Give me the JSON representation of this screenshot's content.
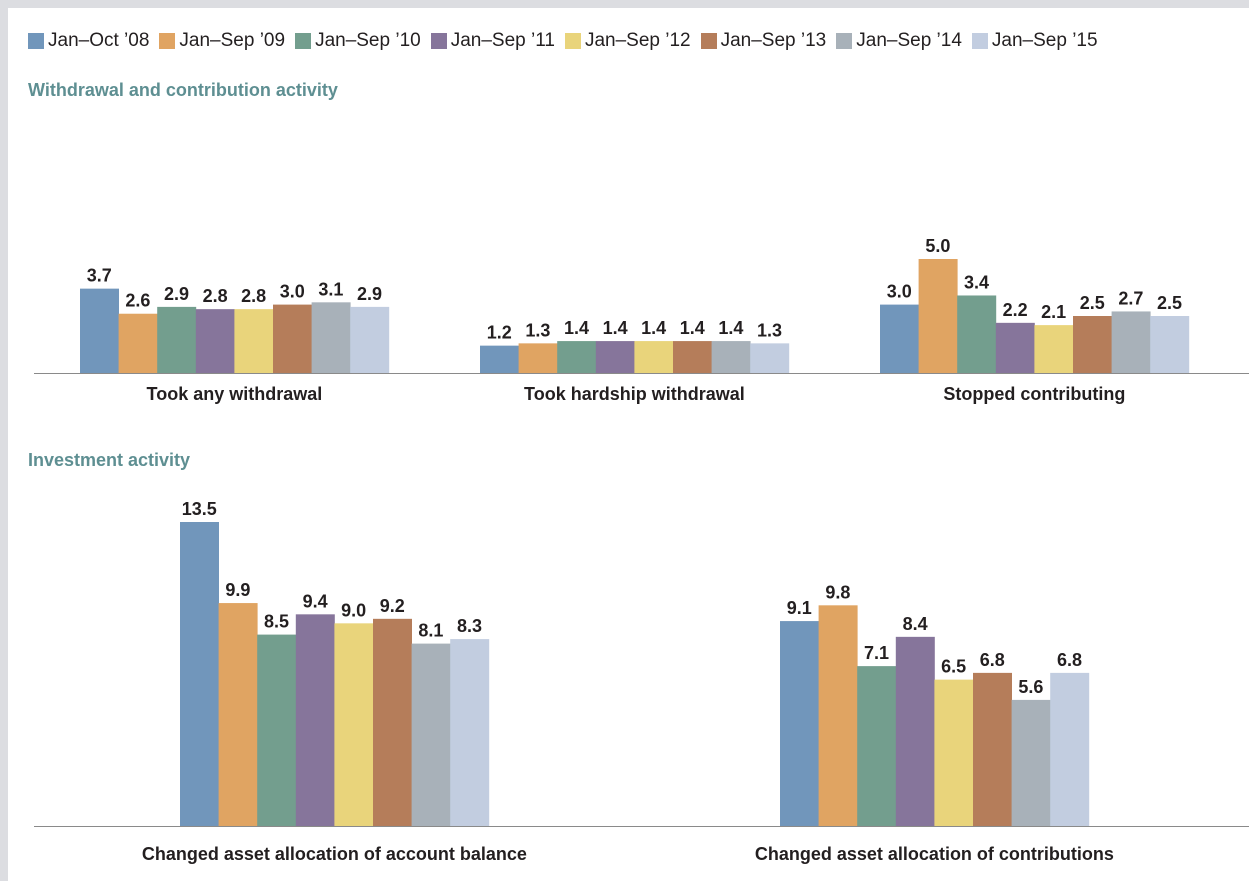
{
  "legend": [
    {
      "label": "Jan–Oct ’08",
      "color": "#7196bb"
    },
    {
      "label": "Jan–Sep ’09",
      "color": "#e0a462"
    },
    {
      "label": "Jan–Sep ’10",
      "color": "#739e8e"
    },
    {
      "label": "Jan–Sep ’11",
      "color": "#86759b"
    },
    {
      "label": "Jan–Sep ’12",
      "color": "#e9d47b"
    },
    {
      "label": "Jan–Sep ’13",
      "color": "#b57d5a"
    },
    {
      "label": "Jan–Sep ’14",
      "color": "#a8b1b9"
    },
    {
      "label": "Jan–Sep ’15",
      "color": "#c2cde0"
    }
  ],
  "sections": {
    "withdrawal_title": "Withdrawal and contribution activity",
    "investment_title": "Investment activity"
  },
  "chart_data": [
    {
      "type": "bar",
      "title": "Withdrawal and contribution activity",
      "categories": [
        "Took any withdrawal",
        "Took hardship withdrawal",
        "Stopped contributing"
      ],
      "series": [
        {
          "name": "Jan–Oct ’08",
          "values": [
            3.7,
            1.2,
            3.0
          ]
        },
        {
          "name": "Jan–Sep ’09",
          "values": [
            2.6,
            1.3,
            5.0
          ]
        },
        {
          "name": "Jan–Sep ’10",
          "values": [
            2.9,
            1.4,
            3.4
          ]
        },
        {
          "name": "Jan–Sep ’11",
          "values": [
            2.8,
            1.4,
            2.2
          ]
        },
        {
          "name": "Jan–Sep ’12",
          "values": [
            2.8,
            1.4,
            2.1
          ]
        },
        {
          "name": "Jan–Sep ’13",
          "values": [
            3.0,
            1.4,
            2.5
          ]
        },
        {
          "name": "Jan–Sep ’14",
          "values": [
            3.1,
            1.4,
            2.7
          ]
        },
        {
          "name": "Jan–Sep ’15",
          "values": [
            2.9,
            1.3,
            2.5
          ]
        }
      ],
      "value_labels": [
        [
          "3.7",
          "1.2",
          "3.0"
        ],
        [
          "2.6",
          "1.3",
          "5.0"
        ],
        [
          "2.9",
          "1.4",
          "3.4"
        ],
        [
          "2.8",
          "1.4",
          "2.2"
        ],
        [
          "2.8",
          "1.4",
          "2.1"
        ],
        [
          "3.0",
          "1.4",
          "2.5"
        ],
        [
          "3.1",
          "1.4",
          "2.7"
        ],
        [
          "2.9",
          "1.3",
          "2.5"
        ]
      ],
      "ylim": [
        0,
        5.0
      ],
      "grid": false,
      "legend": "top"
    },
    {
      "type": "bar",
      "title": "Investment activity",
      "categories": [
        "Changed asset allocation of account balance",
        "Changed asset allocation of contributions"
      ],
      "series": [
        {
          "name": "Jan–Oct ’08",
          "values": [
            13.5,
            9.1
          ]
        },
        {
          "name": "Jan–Sep ’09",
          "values": [
            9.9,
            9.8
          ]
        },
        {
          "name": "Jan–Sep ’10",
          "values": [
            8.5,
            7.1
          ]
        },
        {
          "name": "Jan–Sep ’11",
          "values": [
            9.4,
            8.4
          ]
        },
        {
          "name": "Jan–Sep ’12",
          "values": [
            9.0,
            6.5
          ]
        },
        {
          "name": "Jan–Sep ’13",
          "values": [
            9.2,
            6.8
          ]
        },
        {
          "name": "Jan–Sep ’14",
          "values": [
            8.1,
            5.6
          ]
        },
        {
          "name": "Jan–Sep ’15",
          "values": [
            8.3,
            6.8
          ]
        }
      ],
      "value_labels": [
        [
          "13.5",
          "9.1"
        ],
        [
          "9.9",
          "9.8"
        ],
        [
          "8.5",
          "7.1"
        ],
        [
          "9.4",
          "8.4"
        ],
        [
          "9.0",
          "6.5"
        ],
        [
          "9.2",
          "6.8"
        ],
        [
          "8.1",
          "5.6"
        ],
        [
          "8.3",
          "6.8"
        ]
      ],
      "ylim": [
        0,
        13.5
      ],
      "grid": false,
      "legend": "top"
    }
  ]
}
